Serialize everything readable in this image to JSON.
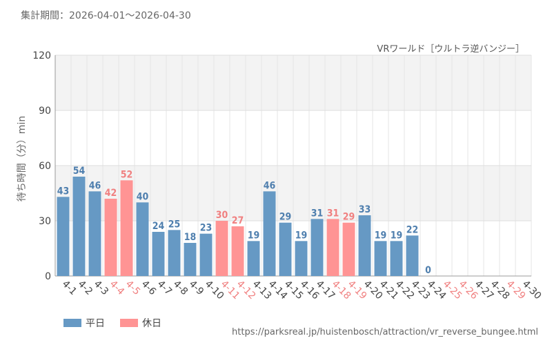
{
  "header": {
    "period": "集計期間：2026-04-01～2026-04-30"
  },
  "footer": {
    "source": "https://parksreal.jp/huistenbosch/attraction/vr_reverse_bungee.html"
  },
  "colors": {
    "weekday": "#6699c4",
    "holiday": "#ff9494",
    "weekday_label": "#4f7fae",
    "holiday_label": "#f08080",
    "grid": "#dddddd",
    "band": "#f3f3f3"
  },
  "chart_data": {
    "type": "bar",
    "title": "VRワールド［ウルトラ逆バンジー］",
    "xlabel": "",
    "ylabel": "待ち時間（分）min",
    "ylim": [
      0,
      120
    ],
    "yticks": [
      0,
      30,
      60,
      90,
      120
    ],
    "grid": true,
    "legend": {
      "position": "bottom-left",
      "entries": [
        {
          "label": "平日",
          "key": "weekday"
        },
        {
          "label": "休日",
          "key": "holiday"
        }
      ]
    },
    "categories": [
      "4-1",
      "4-2",
      "4-3",
      "4-4",
      "4-5",
      "4-6",
      "4-7",
      "4-8",
      "4-9",
      "4-10",
      "4-11",
      "4-12",
      "4-13",
      "4-14",
      "4-15",
      "4-16",
      "4-17",
      "4-18",
      "4-19",
      "4-20",
      "4-21",
      "4-22",
      "4-23",
      "4-24",
      "4-25",
      "4-26",
      "4-27",
      "4-28",
      "4-29",
      "4-30"
    ],
    "values": [
      43,
      54,
      46,
      42,
      52,
      40,
      24,
      25,
      18,
      23,
      30,
      27,
      19,
      46,
      29,
      19,
      31,
      31,
      29,
      33,
      19,
      19,
      22,
      0,
      null,
      null,
      null,
      null,
      null,
      null
    ],
    "day_type": [
      "weekday",
      "weekday",
      "weekday",
      "holiday",
      "holiday",
      "weekday",
      "weekday",
      "weekday",
      "weekday",
      "weekday",
      "holiday",
      "holiday",
      "weekday",
      "weekday",
      "weekday",
      "weekday",
      "weekday",
      "holiday",
      "holiday",
      "weekday",
      "weekday",
      "weekday",
      "weekday",
      "weekday",
      "holiday",
      "holiday",
      "weekday",
      "weekday",
      "holiday",
      "weekday"
    ]
  }
}
